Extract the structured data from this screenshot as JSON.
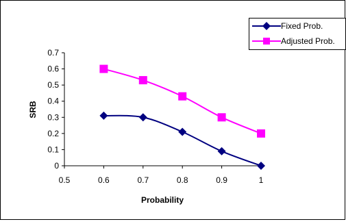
{
  "chart_data": {
    "type": "line",
    "title": "",
    "xlabel": "Probability",
    "ylabel": "SRB",
    "xlim": [
      0.5,
      1
    ],
    "ylim": [
      0,
      0.7
    ],
    "x_ticks": [
      "0.5",
      "0.6",
      "0.7",
      "0.8",
      "0.9",
      "1"
    ],
    "y_ticks": [
      "0",
      "0.1",
      "0.2",
      "0.3",
      "0.4",
      "0.5",
      "0.6",
      "0.7"
    ],
    "grid": false,
    "legend_position": "top-right",
    "series": [
      {
        "name": "Fixed Prob.",
        "color": "#000080",
        "marker": "diamond",
        "x": [
          0.6,
          0.7,
          0.8,
          0.9,
          1
        ],
        "y": [
          0.31,
          0.3,
          0.21,
          0.09,
          0.0
        ]
      },
      {
        "name": "Adjusted Prob.",
        "color": "#FF00FF",
        "marker": "square",
        "x": [
          0.6,
          0.7,
          0.8,
          0.9,
          1
        ],
        "y": [
          0.6,
          0.53,
          0.43,
          0.3,
          0.2
        ]
      }
    ]
  }
}
